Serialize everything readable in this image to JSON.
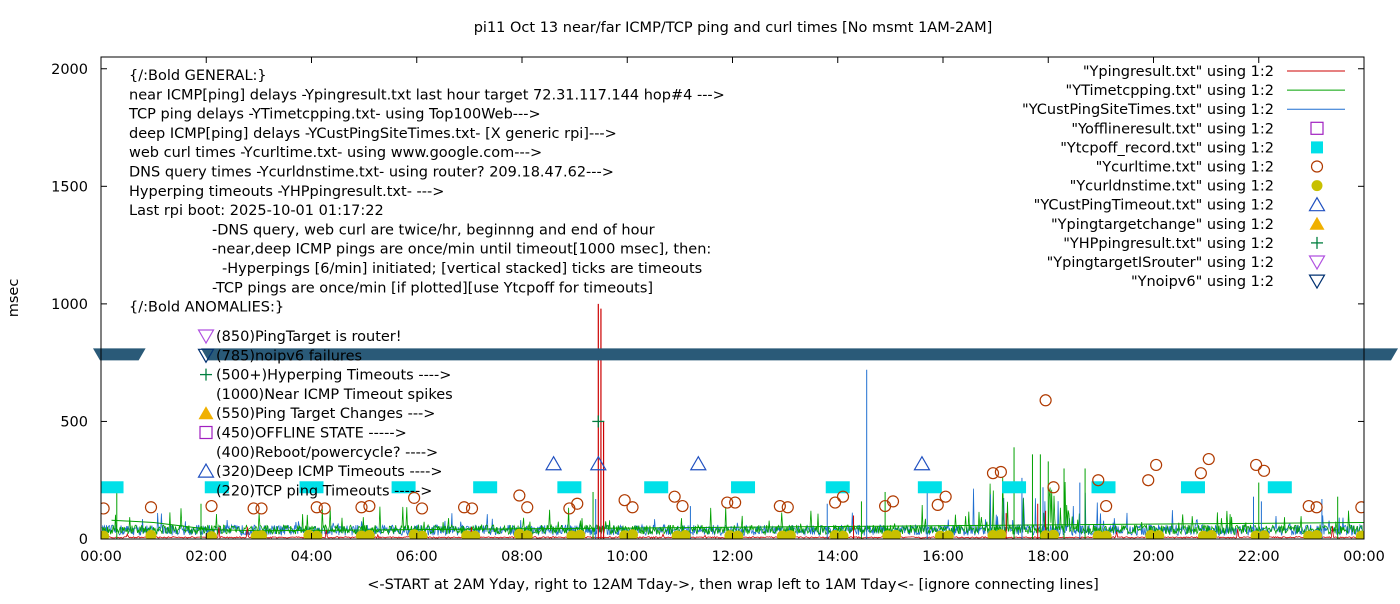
{
  "chart_data": {
    "type": "line",
    "title": "pi11 Oct 13  near/far ICMP/TCP ping and curl times [No msmt 1AM-2AM]",
    "xlabel": "<-START at 2AM Yday, right to 12AM Tday->, then wrap left to 1AM Tday<- [ignore connecting lines]",
    "ylabel": "msec",
    "x_unit": "hour of day",
    "xlim": [
      0,
      24
    ],
    "ylim": [
      0,
      2050
    ],
    "x_ticks": [
      {
        "v": 0,
        "label": "00:00"
      },
      {
        "v": 2,
        "label": "02:00"
      },
      {
        "v": 4,
        "label": "04:00"
      },
      {
        "v": 6,
        "label": "06:00"
      },
      {
        "v": 8,
        "label": "08:00"
      },
      {
        "v": 10,
        "label": "10:00"
      },
      {
        "v": 12,
        "label": "12:00"
      },
      {
        "v": 14,
        "label": "14:00"
      },
      {
        "v": 16,
        "label": "16:00"
      },
      {
        "v": 18,
        "label": "18:00"
      },
      {
        "v": 20,
        "label": "20:00"
      },
      {
        "v": 22,
        "label": "22:00"
      },
      {
        "v": 24,
        "label": "00:00"
      }
    ],
    "y_ticks": [
      {
        "v": 0,
        "label": "0"
      },
      {
        "v": 500,
        "label": "500"
      },
      {
        "v": 1000,
        "label": "1000"
      },
      {
        "v": 1500,
        "label": "1500"
      },
      {
        "v": 2000,
        "label": "2000"
      }
    ],
    "grid": false,
    "legend_position": "top-right",
    "annotations": [
      "{/:Bold GENERAL:}",
      "near ICMP[ping] delays -Ypingresult.txt last hour target 72.31.117.144 hop#4 --->",
      "TCP ping delays -YTimetcpping.txt- using Top100Web--->",
      "deep ICMP[ping] delays -YCustPingSiteTimes.txt- [X generic rpi]--->",
      "web curl times -Ycurltime.txt- using www.google.com--->",
      "DNS query times -Ycurldnstime.txt- using router? 209.18.47.62--->",
      "Hyperping timeouts -YHPpingresult.txt- --->",
      "Last rpi boot: 2025-10-01 01:17:22",
      "-DNS query, web curl are twice/hr, beginnng and end of hour",
      "-near,deep ICMP pings are once/min until timeout[1000 msec], then:",
      "-Hyperpings [6/min] initiated; [vertical stacked] ticks are timeouts",
      "-TCP pings are once/min [if plotted][use Ytcpoff for timeouts]",
      "{/:Bold ANOMALIES:}"
    ],
    "anomaly_items": [
      {
        "marker": "tri-down-violet",
        "text": "(850)PingTarget is router!"
      },
      {
        "marker": "tri-down-navy",
        "text": "(785)noipv6 failures"
      },
      {
        "marker": "plus-green",
        "text": "(500+)Hyperping Timeouts ---->"
      },
      {
        "marker": "none",
        "text": "(1000)Near ICMP Timeout spikes"
      },
      {
        "marker": "tri-up-gold",
        "text": "(550)Ping Target Changes --->"
      },
      {
        "marker": "square-purple",
        "text": "(450)OFFLINE STATE ----->"
      },
      {
        "marker": "none",
        "text": "(400)Reboot/powercycle? ---->"
      },
      {
        "marker": "tri-up-blue",
        "text": "(320)Deep ICMP Timeouts ---->"
      },
      {
        "marker": "none",
        "text": "(220)TCP ping Timeouts ----->"
      }
    ],
    "legend": [
      {
        "name": "\"Ypingresult.txt\" using 1:2",
        "kind": "line",
        "color": "#cc0000"
      },
      {
        "name": "\"YTimetcpping.txt\" using 1:2",
        "kind": "line",
        "color": "#00a000"
      },
      {
        "name": "\"YCustPingSiteTimes.txt\" using 1:2",
        "kind": "line",
        "color": "#1f6fd0"
      },
      {
        "name": "\"Yofflineresult.txt\" using 1:2",
        "kind": "square-open",
        "color": "#a020c0"
      },
      {
        "name": "\"Ytcpoff_record.txt\" using 1:2",
        "kind": "square-filled",
        "color": "#00e0e8"
      },
      {
        "name": "\"Ycurltime.txt\" using 1:2",
        "kind": "circle-open",
        "color": "#b03a00"
      },
      {
        "name": "\"Ycurldnstime.txt\" using 1:2",
        "kind": "circle-filled",
        "color": "#c8c000"
      },
      {
        "name": "\"YCustPingTimeout.txt\" using 1:2",
        "kind": "tri-up-open",
        "color": "#2050c0"
      },
      {
        "name": "\"Ypingtargetchange\" using 1:2",
        "kind": "tri-up-filled",
        "color": "#f0b000"
      },
      {
        "name": "\"YHPpingresult.txt\" using 1:2",
        "kind": "plus",
        "color": "#007f3f"
      },
      {
        "name": "\"YpingtargetISrouter\" using 1:2",
        "kind": "tri-down-open",
        "color": "#b050e0"
      },
      {
        "name": "\"Ynoipv6\" using 1:2",
        "kind": "tri-down-open",
        "color": "#003070"
      }
    ],
    "noipv6_band": {
      "y": 785,
      "gaps": [
        [
          1.0,
          1.9
        ]
      ]
    },
    "near_ping_spikes": [
      {
        "x": 9.45,
        "y": 1000
      },
      {
        "x": 9.5,
        "y": 980
      },
      {
        "x": 9.55,
        "y": 500
      }
    ],
    "series": [
      {
        "name": "\"YCustPingTimeout.txt\" using 1:2",
        "marker": "tri-up-open",
        "x": [
          8.6,
          9.45,
          11.35,
          15.6
        ],
        "y": [
          320,
          320,
          320,
          320
        ]
      },
      {
        "name": "\"Ytcpoff_record.txt\" using 1:2",
        "marker": "square-filled",
        "x": [
          0.2,
          2.2,
          4.0,
          5.75,
          7.3,
          8.9,
          10.55,
          12.2,
          14.0,
          15.75,
          17.35,
          19.05,
          20.75,
          22.4
        ],
        "y": [
          220,
          220,
          220,
          220,
          220,
          220,
          220,
          220,
          220,
          220,
          220,
          220,
          220,
          220
        ]
      },
      {
        "name": "\"YHPpingresult.txt\" using 1:2",
        "marker": "plus",
        "x": [
          9.45
        ],
        "y": [
          500
        ]
      },
      {
        "name": "\"Ycurltime.txt\" using 1:2",
        "marker": "circle-open",
        "x": [
          0.05,
          0.95,
          2.1,
          2.9,
          3.05,
          4.1,
          4.25,
          4.95,
          5.1,
          5.95,
          6.1,
          6.9,
          7.05,
          7.95,
          8.1,
          8.9,
          9.05,
          9.95,
          10.1,
          10.9,
          11.05,
          11.9,
          12.05,
          12.9,
          13.05,
          13.95,
          14.1,
          14.9,
          15.05,
          15.9,
          16.05,
          16.95,
          17.1,
          17.95,
          18.1,
          18.95,
          19.1,
          19.9,
          20.05,
          20.9,
          21.05,
          21.95,
          22.1,
          22.95,
          23.1,
          23.95
        ],
        "y": [
          130,
          135,
          140,
          130,
          130,
          135,
          130,
          135,
          140,
          175,
          130,
          135,
          130,
          185,
          135,
          130,
          150,
          165,
          135,
          180,
          140,
          155,
          155,
          140,
          135,
          155,
          180,
          140,
          160,
          145,
          180,
          280,
          285,
          590,
          220,
          250,
          140,
          250,
          315,
          280,
          340,
          315,
          290,
          140,
          135,
          135
        ]
      },
      {
        "name": "\"Ycurldnstime.txt\" using 1:2",
        "marker": "circle-filled",
        "x": [
          0.05,
          0.95,
          2.1,
          2.95,
          3.05,
          3.95,
          4.1,
          4.95,
          5.1,
          5.95,
          6.1,
          6.95,
          7.1,
          7.95,
          8.1,
          8.95,
          9.1,
          9.95,
          10.1,
          10.95,
          11.1,
          11.95,
          12.1,
          12.95,
          13.1,
          13.95,
          14.1,
          14.95,
          15.1,
          15.95,
          16.1,
          16.95,
          17.1,
          17.95,
          18.1,
          18.95,
          19.1,
          19.95,
          20.1,
          20.95,
          21.1,
          21.95,
          22.1,
          22.95,
          23.1,
          23.95
        ],
        "y": [
          12,
          15,
          10,
          12,
          14,
          16,
          12,
          13,
          15,
          18,
          12,
          14,
          12,
          20,
          14,
          13,
          16,
          14,
          18,
          12,
          15,
          14,
          12,
          13,
          14,
          15,
          12,
          14,
          16,
          12,
          13,
          15,
          18,
          14,
          16,
          13,
          12,
          15,
          14,
          12,
          15,
          13,
          14,
          12,
          15,
          12
        ]
      }
    ]
  }
}
